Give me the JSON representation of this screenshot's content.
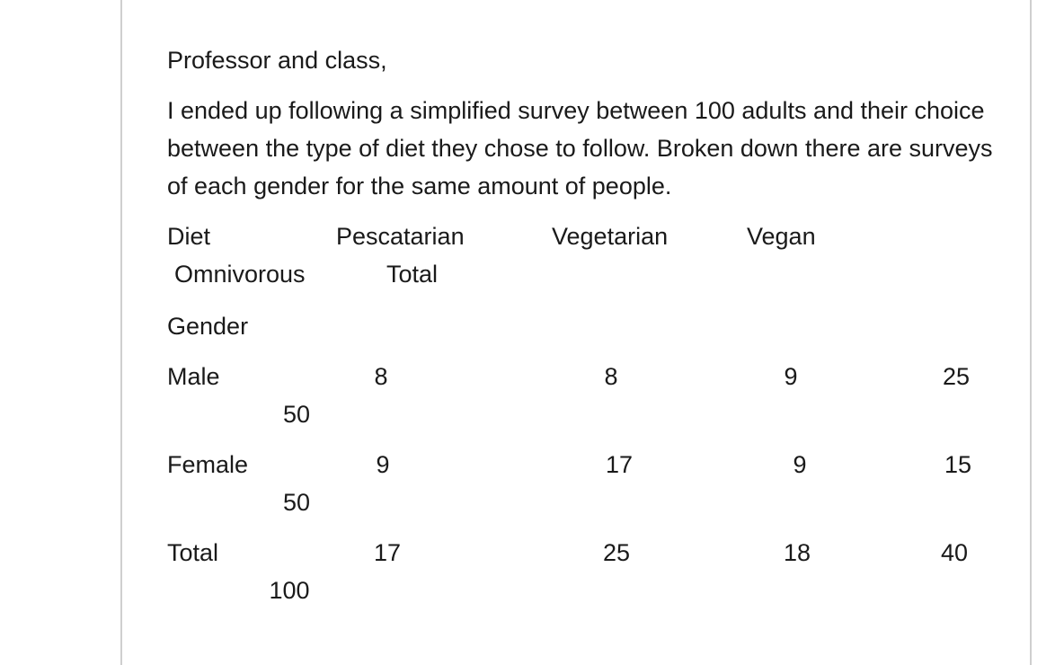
{
  "post": {
    "greeting": "Professor and class,",
    "intro": "I ended up following a simplified survey between 100 adults and their choice between the type of diet they chose to follow. Broken down there are surveys of each gender for the same amount of people."
  },
  "table": {
    "header_label": "Diet",
    "columns": [
      "Pescatarian",
      "Vegetarian",
      "Vegan",
      "Omnivorous",
      "Total"
    ],
    "row_group_label": "Gender",
    "rows": [
      {
        "label": "Male",
        "values": [
          "8",
          "8",
          "9",
          "25",
          "50"
        ]
      },
      {
        "label": "Female",
        "values": [
          "9",
          "17",
          "9",
          "15",
          "50"
        ]
      },
      {
        "label": "Total",
        "values": [
          "17",
          "25",
          "18",
          "40",
          "100"
        ]
      }
    ]
  }
}
